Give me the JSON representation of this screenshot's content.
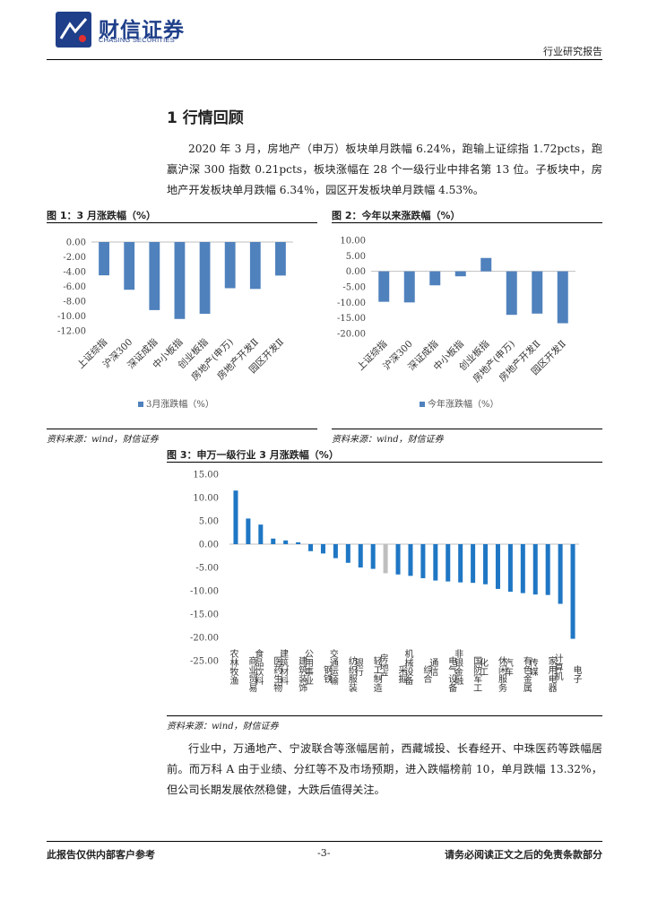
{
  "header": {
    "brand_cn": "财信证券",
    "brand_en": "CHASING SECURITIES",
    "report_type": "行业研究报告"
  },
  "section": {
    "title": "1 行情回顾"
  },
  "paragraphs": [
    "2020 年 3 月，房地产（申万）板块单月跌幅 6.24%，跑输上证综指 1.72pcts，跑赢沪深 300 指数 0.21pcts，板块涨幅在 28 个一级行业中排名第 13 位。子板块中，房地产开发板块单月跌幅 6.34％，园区开发板块单月跌幅 4.53%。",
    "行业中，万通地产、宁波联合等涨幅居前，西藏城投、长春经开、中珠医药等跌幅居前。而万科 A 由于业绩、分红等不及市场预期，进入跌幅榜前 10，单月跌幅 13.32%，但公司长期发展依然稳健，大跌后值得关注。"
  ],
  "figures": [
    {
      "title": "图 1：3 月涨跌幅（%）",
      "source": "资料来源：wind，财信证券"
    },
    {
      "title": "图 2：今年以来涨跌幅（%）",
      "source": "资料来源：wind，财信证券"
    },
    {
      "title": "图 3：申万一级行业 3 月涨跌幅（%）",
      "source": "资料来源：wind，财信证券"
    }
  ],
  "colors": {
    "bar_blue": "#4f81bd",
    "bar_blue_dark": "#1f77c4",
    "bar_gray": "#bfbfbf",
    "brand": "#1f3f8a"
  },
  "chart_data": [
    {
      "type": "bar",
      "categories": [
        "上证综指",
        "沪深300",
        "深证成指",
        "中小板指",
        "创业板指",
        "房地产(申万)",
        "房地产开发Ⅱ",
        "园区开发Ⅱ"
      ],
      "series": [
        {
          "name": "3月涨跌幅（%）",
          "values": [
            -4.5,
            -6.45,
            -9.2,
            -10.4,
            -9.7,
            -6.24,
            -6.34,
            -4.53
          ]
        }
      ],
      "ylim": [
        -12,
        0
      ],
      "yticks": [
        "0.00",
        "-2.00",
        "-4.00",
        "-6.00",
        "-8.00",
        "-10.00",
        "-12.00"
      ],
      "legend_position": "bottom"
    },
    {
      "type": "bar",
      "categories": [
        "上证综指",
        "沪深300",
        "深证成指",
        "中小板指",
        "创业板指",
        "房地产(申万)",
        "房地产开发Ⅱ",
        "园区开发Ⅱ"
      ],
      "series": [
        {
          "name": "今年涨跌幅（%）",
          "values": [
            -9.8,
            -10.0,
            -4.5,
            -1.6,
            4.3,
            -14.0,
            -13.6,
            -16.7
          ]
        }
      ],
      "ylim": [
        -20,
        10
      ],
      "yticks": [
        "10.00",
        "5.00",
        "0.00",
        "-5.00",
        "-10.00",
        "-15.00",
        "-20.00"
      ],
      "legend_position": "bottom"
    },
    {
      "type": "bar",
      "categories": [
        "农林牧渔",
        "商业贸易",
        "食品饮料",
        "医药生物",
        "建筑材料",
        "建筑装饰",
        "公用事业",
        "钢铁",
        "交通运输",
        "纺织服装",
        "银行",
        "轻工制造",
        "房地产",
        "采掘",
        "机械设备",
        "综合",
        "通信",
        "电气设备",
        "非银金融",
        "国防军工",
        "化工",
        "休闲服务",
        "汽车",
        "有色金属",
        "传媒",
        "家用电器",
        "计算机",
        "电子"
      ],
      "values": [
        11.5,
        5.5,
        4.2,
        1.2,
        0.8,
        0.4,
        -1.5,
        -2.0,
        -3.0,
        -4.0,
        -5.0,
        -5.3,
        -6.24,
        -6.5,
        -6.8,
        -7.3,
        -7.8,
        -8.0,
        -8.2,
        -8.3,
        -8.6,
        -9.6,
        -10.2,
        -10.5,
        -10.8,
        -10.9,
        -12.8,
        -20.3
      ],
      "highlight_index": 12,
      "ylim": [
        -25,
        15
      ],
      "yticks": [
        "15.00",
        "10.00",
        "5.00",
        "0.00",
        "-5.00",
        "-10.00",
        "-15.00",
        "-20.00",
        "-25.00"
      ]
    }
  ],
  "footer": {
    "left": "此报告仅供内部客户参考",
    "page": "-3-",
    "right": "请务必阅读正文之后的免责条款部分"
  }
}
